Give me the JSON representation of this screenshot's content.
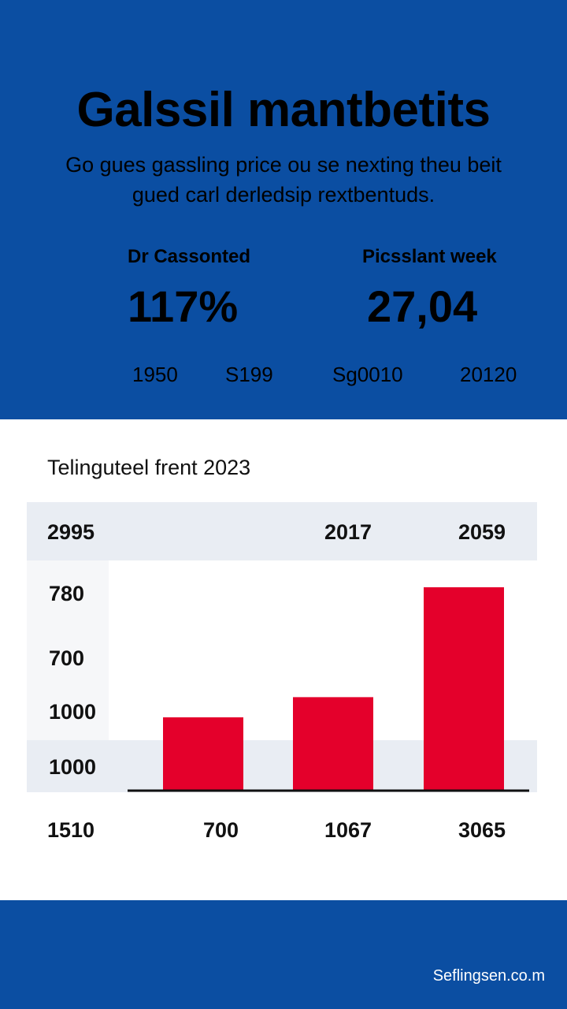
{
  "header": {
    "title": "Galssil mantbetits",
    "subtitle": "Go gues gassling price ou se nexting theu beit gued carl derledsip rextbentuds.",
    "stats": [
      {
        "label": "Dr Cassonted",
        "value": "117%"
      },
      {
        "label": "Picsslant week",
        "value": "27,04"
      }
    ],
    "mini_values": [
      "1950",
      "S199",
      "Sg0010",
      "20120"
    ]
  },
  "chart_data": {
    "type": "bar",
    "title": "Telinguteel frent 2023",
    "header_labels": [
      "2995",
      "2017",
      "2059"
    ],
    "y_labels": [
      "780",
      "700",
      "1000",
      "1000"
    ],
    "x_labels": [
      "1510",
      "700",
      "1067",
      "3065"
    ],
    "categories": [
      "700",
      "1067",
      "3065"
    ],
    "values": [
      700,
      1067,
      3065
    ],
    "color": "#e4002b",
    "baseline_color": "#111111"
  },
  "footer": {
    "text": "Seflingsen.co.m"
  },
  "colors": {
    "brand_blue": "#0b4ea2",
    "bar_red": "#e4002b",
    "header_band": "#e9edf3"
  }
}
